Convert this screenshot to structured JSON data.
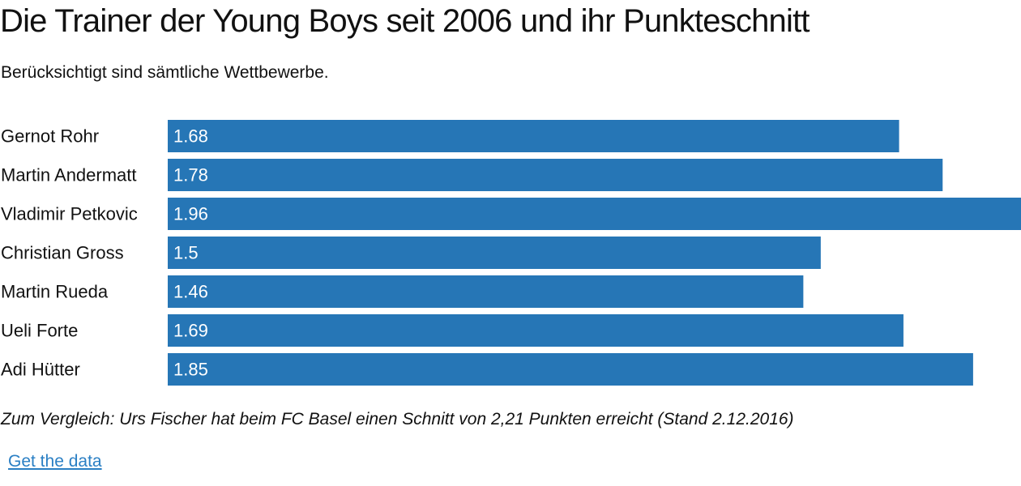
{
  "title": "Die Trainer der Young Boys seit 2006 und ihr Punkteschnitt",
  "subtitle": "Berücksichtigt sind sämtliche Wettbewerbe.",
  "note": "Zum Vergleich: Urs Fischer hat beim FC Basel einen Schnitt von 2,21 Punkten erreicht (Stand 2.12.2016)",
  "link_label": "Get the data",
  "colors": {
    "bar": "#2676b6",
    "link": "#2a7fc4"
  },
  "chart_data": {
    "type": "bar",
    "orientation": "horizontal",
    "categories": [
      "Gernot Rohr",
      "Martin Andermatt",
      "Vladimir Petkovic",
      "Christian Gross",
      "Martin Rueda",
      "Ueli Forte",
      "Adi Hütter"
    ],
    "values": [
      1.68,
      1.78,
      1.96,
      1.5,
      1.46,
      1.69,
      1.85
    ],
    "value_labels": [
      "1.68",
      "1.78",
      "1.96",
      "1.5",
      "1.46",
      "1.69",
      "1.85"
    ],
    "xlim": [
      0,
      1.96
    ],
    "grid": false,
    "legend": false
  }
}
